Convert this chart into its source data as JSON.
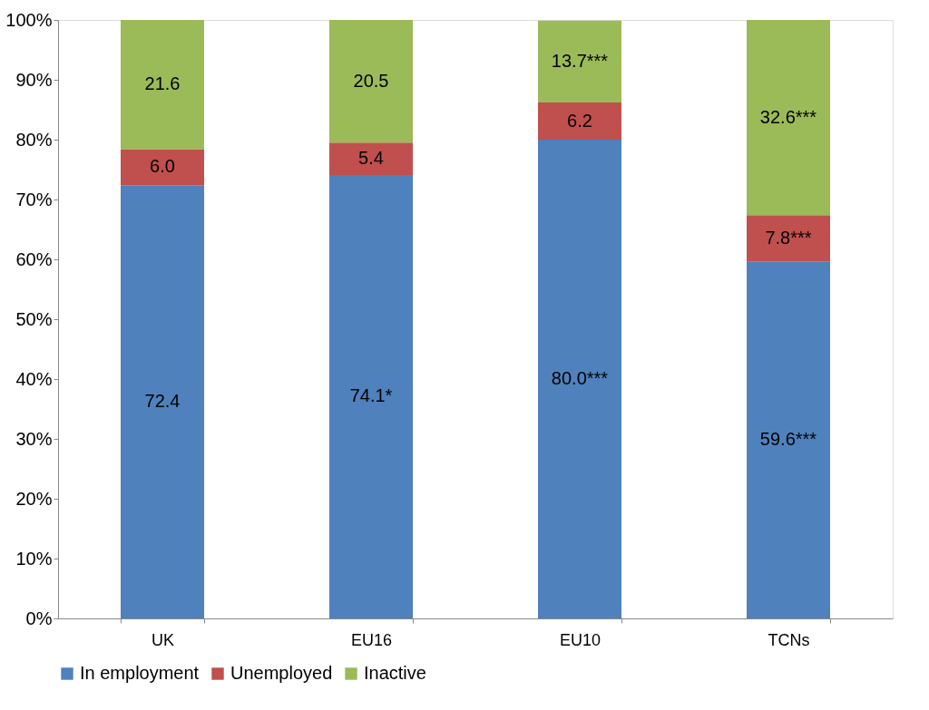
{
  "chart_data": {
    "type": "bar",
    "stacked": true,
    "categories": [
      "UK",
      "EU16",
      "EU10",
      "TCNs"
    ],
    "series": [
      {
        "name": "In employment",
        "color": "#4f81bd",
        "values": [
          72.4,
          74.1,
          80.0,
          59.6
        ],
        "value_labels": [
          "72.4",
          "74.1*",
          "80.0***",
          "59.6***"
        ]
      },
      {
        "name": "Unemployed",
        "color": "#c0504d",
        "values": [
          6.0,
          5.4,
          6.2,
          7.8
        ],
        "value_labels": [
          "6.0",
          "5.4",
          "6.2",
          "7.8***"
        ]
      },
      {
        "name": "Inactive",
        "color": "#9bbb59",
        "values": [
          21.6,
          20.5,
          13.7,
          32.6
        ],
        "value_labels": [
          "21.6",
          "20.5",
          "13.7***",
          "32.6***"
        ]
      }
    ],
    "ylim": [
      0,
      100
    ],
    "yticks": [
      {
        "value": 0,
        "label": "0%"
      },
      {
        "value": 10,
        "label": "10%"
      },
      {
        "value": 20,
        "label": "20%"
      },
      {
        "value": 30,
        "label": "30%"
      },
      {
        "value": 40,
        "label": "40%"
      },
      {
        "value": 50,
        "label": "50%"
      },
      {
        "value": 60,
        "label": "60%"
      },
      {
        "value": 70,
        "label": "70%"
      },
      {
        "value": 80,
        "label": "80%"
      },
      {
        "value": 90,
        "label": "90%"
      },
      {
        "value": 100,
        "label": "100%"
      }
    ],
    "grid": false,
    "legend": "bottom"
  }
}
